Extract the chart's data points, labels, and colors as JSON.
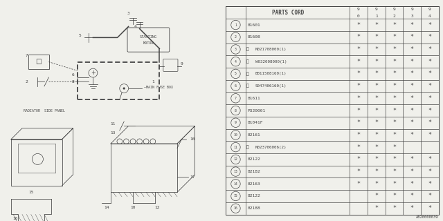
{
  "bg_color": "#f0f0eb",
  "watermark": "A820000039",
  "table": {
    "rows": [
      {
        "num": "1",
        "part": "81601",
        "cols": [
          1,
          1,
          1,
          1,
          1
        ]
      },
      {
        "num": "2",
        "part": "81608",
        "cols": [
          1,
          1,
          1,
          1,
          1
        ]
      },
      {
        "num": "3",
        "part": "N021708000(1)",
        "cols": [
          1,
          1,
          1,
          1,
          1
        ]
      },
      {
        "num": "4",
        "part": "W032008000(1)",
        "cols": [
          1,
          1,
          1,
          1,
          1
        ]
      },
      {
        "num": "5",
        "part": "B011508160(1)",
        "cols": [
          1,
          1,
          1,
          1,
          1
        ]
      },
      {
        "num": "6",
        "part": "S047406160(1)",
        "cols": [
          1,
          1,
          1,
          1,
          1
        ]
      },
      {
        "num": "7",
        "part": "81611",
        "cols": [
          1,
          1,
          1,
          1,
          1
        ]
      },
      {
        "num": "8",
        "part": "P320001",
        "cols": [
          1,
          1,
          1,
          1,
          1
        ]
      },
      {
        "num": "9",
        "part": "81041F",
        "cols": [
          1,
          1,
          1,
          1,
          1
        ]
      },
      {
        "num": "10",
        "part": "82161",
        "cols": [
          1,
          1,
          1,
          1,
          1
        ]
      },
      {
        "num": "11",
        "part": "N023706006(2)",
        "cols": [
          1,
          1,
          1,
          0,
          0
        ]
      },
      {
        "num": "12",
        "part": "82122",
        "cols": [
          1,
          1,
          1,
          1,
          1
        ]
      },
      {
        "num": "13",
        "part": "82182",
        "cols": [
          1,
          1,
          1,
          1,
          1
        ]
      },
      {
        "num": "14",
        "part": "82163",
        "cols": [
          1,
          1,
          1,
          1,
          1
        ]
      },
      {
        "num": "15",
        "part": "82122",
        "cols": [
          0,
          1,
          1,
          1,
          1
        ]
      },
      {
        "num": "16",
        "part": "82188",
        "cols": [
          0,
          1,
          1,
          1,
          1
        ]
      }
    ],
    "year_cols": [
      "9\n0",
      "9\n1",
      "9\n2",
      "9\n3",
      "9\n4"
    ],
    "prefix_map": {
      "3": "N",
      "4": "W",
      "5": "B",
      "6": "S",
      "11": "N"
    }
  }
}
